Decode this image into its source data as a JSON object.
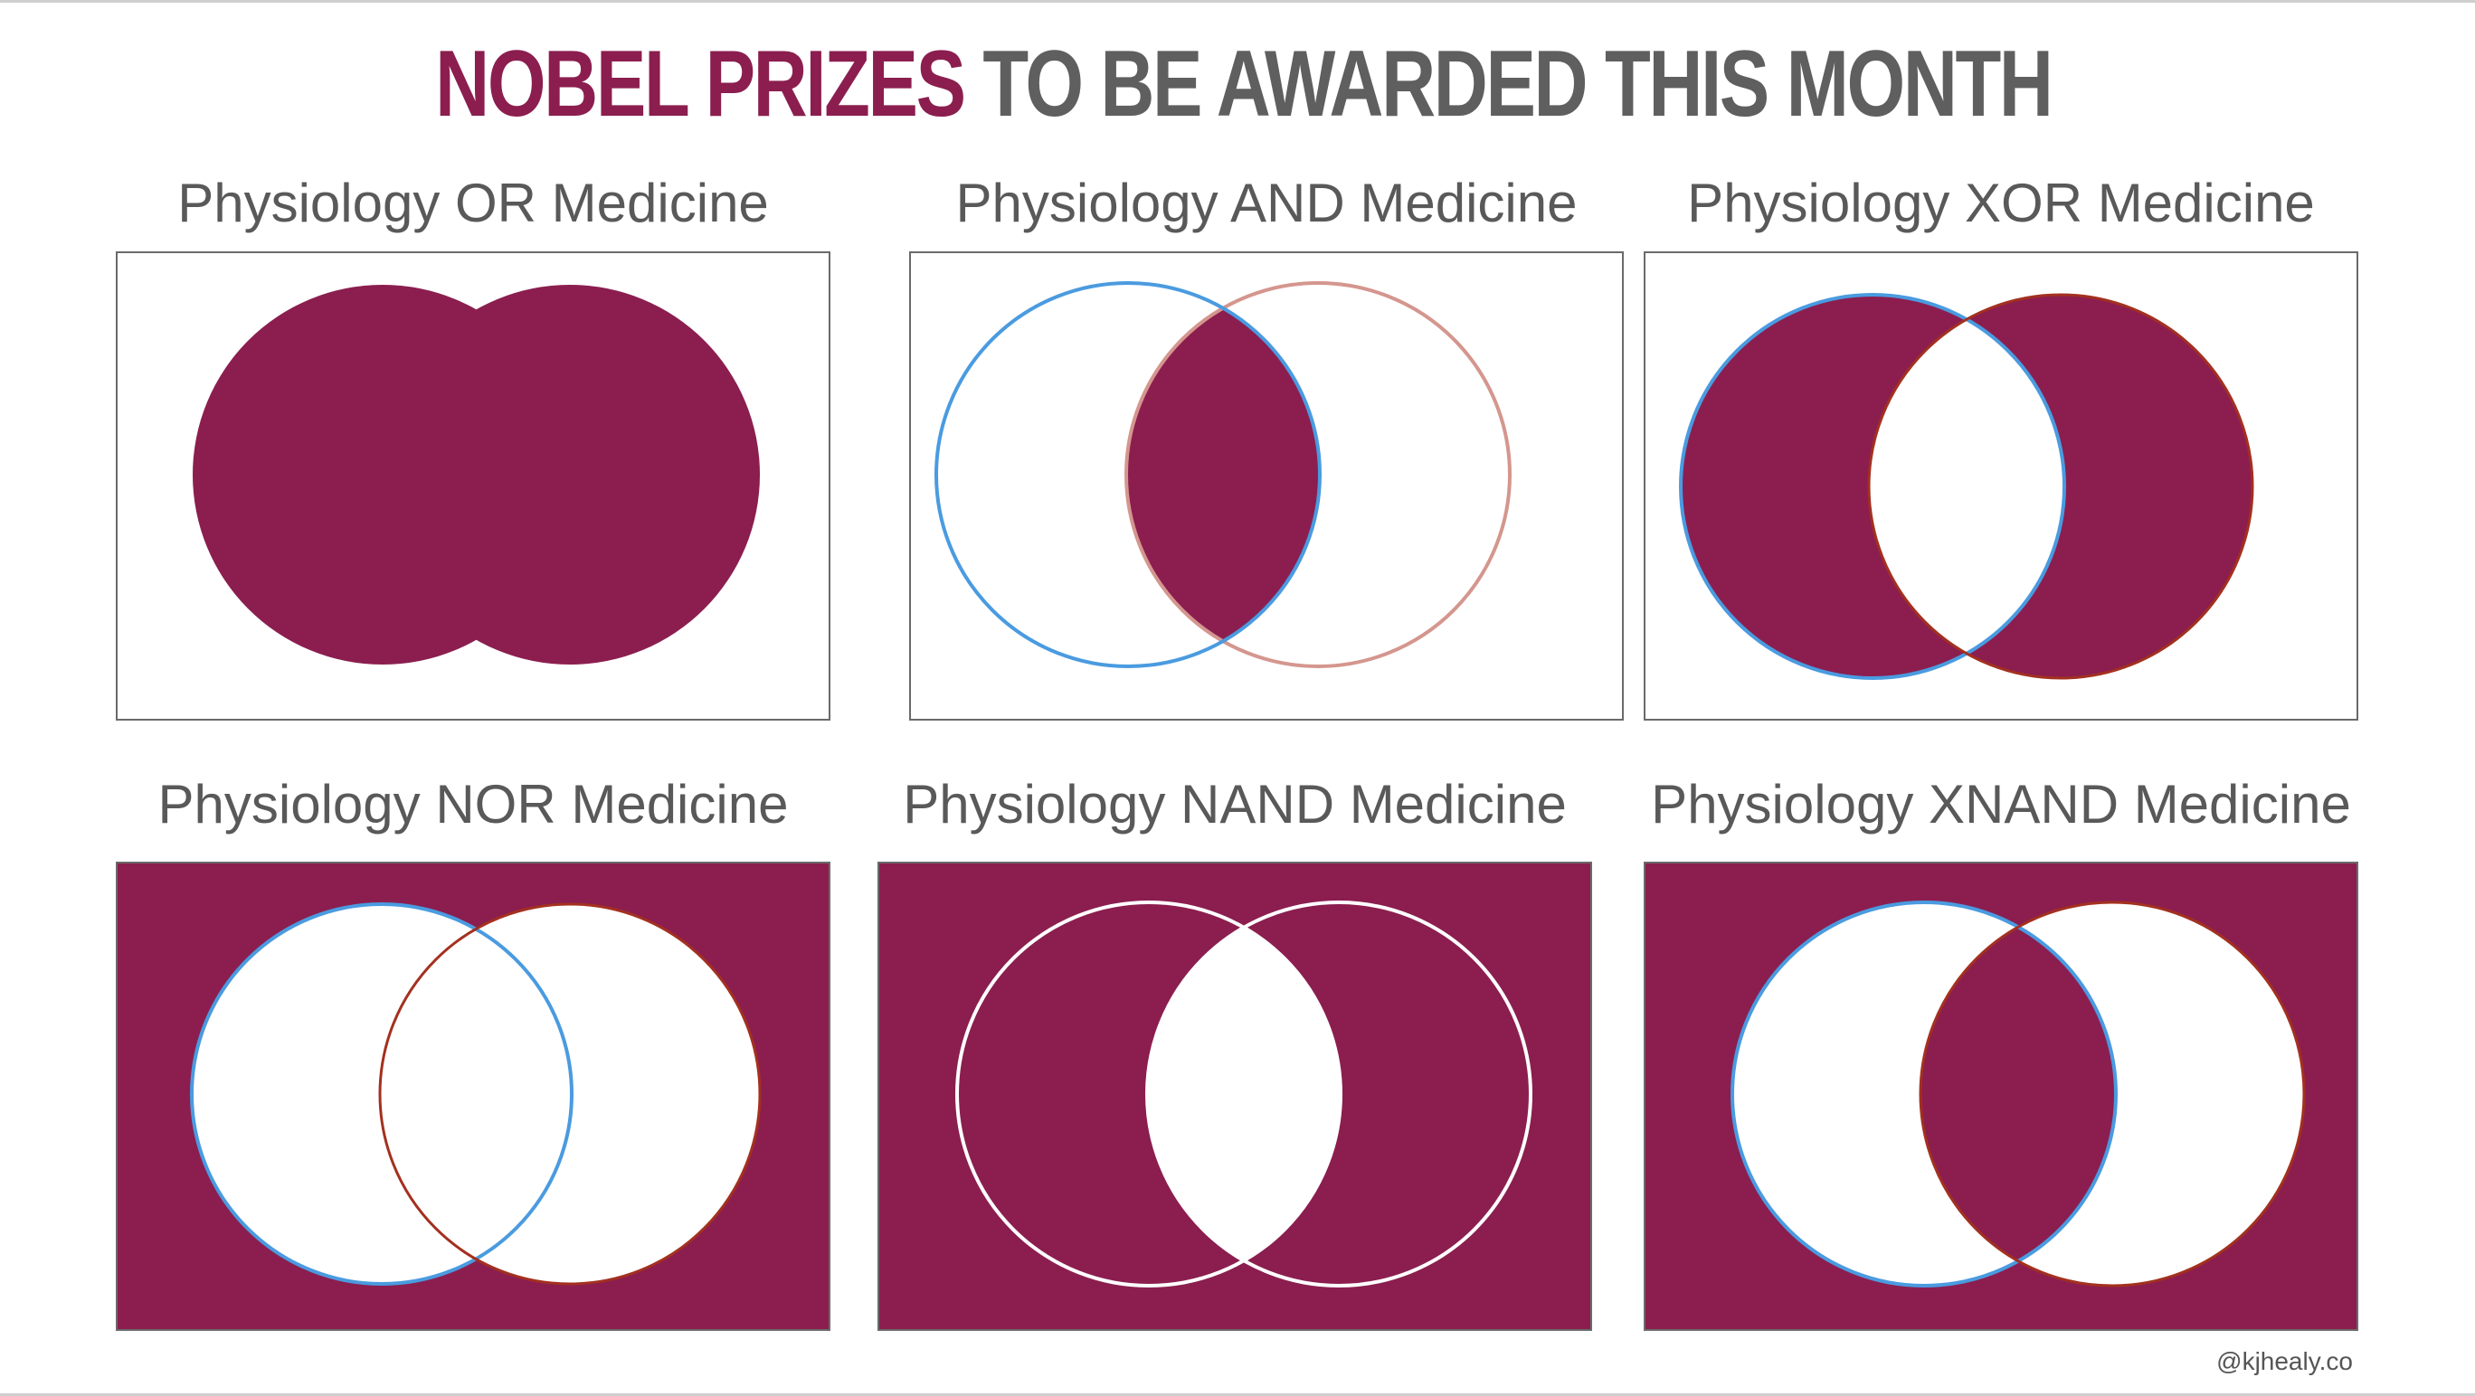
{
  "title": {
    "accent_text": "NOBEL PRIZES",
    "rest_text": "TO BE AWARDED THIS MONTH"
  },
  "colors": {
    "fill": "#8b1e4f",
    "blue_stroke": "#4a9be0",
    "pink_stroke": "#d4968e",
    "red_stroke": "#a3301f",
    "white": "#ffffff",
    "title_gray": "#5f5f5f"
  },
  "panels": [
    {
      "title": "Physiology OR Medicine",
      "op": "OR"
    },
    {
      "title": "Physiology AND Medicine",
      "op": "AND"
    },
    {
      "title": "Physiology XOR Medicine",
      "op": "XOR"
    },
    {
      "title": "Physiology NOR Medicine",
      "op": "NOR"
    },
    {
      "title": "Physiology NAND Medicine",
      "op": "NAND"
    },
    {
      "title": "Physiology XNAND Medicine",
      "op": "XNAND"
    }
  ],
  "credit": "@kjhealy.co"
}
